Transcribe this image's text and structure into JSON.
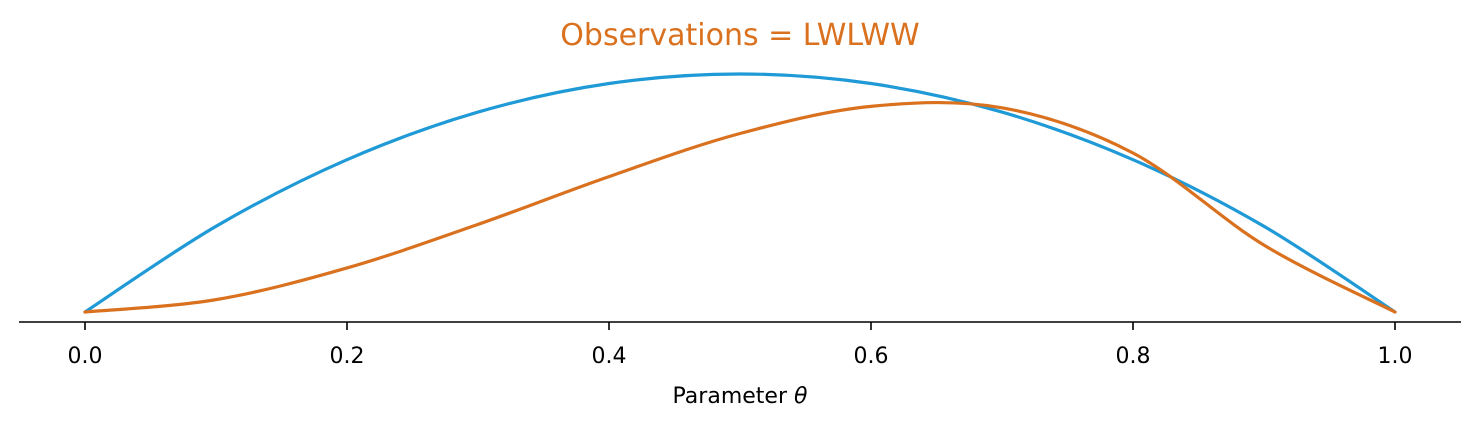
{
  "chart_data": {
    "type": "line",
    "title": "Observations = LWLWW",
    "xlabel": "Parameter θ",
    "xlabel_prefix": "Parameter ",
    "xlabel_symbol": "θ",
    "ylabel": "",
    "xlim": [
      -0.05,
      1.05
    ],
    "ylim": [
      0,
      1
    ],
    "x_ticks": [
      "0.0",
      "0.2",
      "0.4",
      "0.6",
      "0.8",
      "1.0"
    ],
    "y_axis_visible": false,
    "grid": false,
    "series": [
      {
        "color": "#1f9ad6",
        "x": [
          0.0,
          0.1,
          0.2,
          0.3,
          0.4,
          0.5,
          0.6,
          0.7,
          0.8,
          0.9,
          1.0
        ],
        "y": [
          0.0,
          0.36,
          0.64,
          0.84,
          0.96,
          1.0,
          0.96,
          0.84,
          0.64,
          0.36,
          0.0
        ]
      },
      {
        "color": "#d9711f",
        "x": [
          0.0,
          0.1,
          0.2,
          0.3,
          0.4,
          0.5,
          0.6,
          0.7,
          0.8,
          0.9,
          1.0
        ],
        "y": [
          0.0,
          0.052,
          0.185,
          0.368,
          0.569,
          0.75,
          0.864,
          0.858,
          0.668,
          0.281,
          0.0
        ]
      }
    ],
    "colors": {
      "title": "#d9711f",
      "axis": "#000000"
    }
  }
}
